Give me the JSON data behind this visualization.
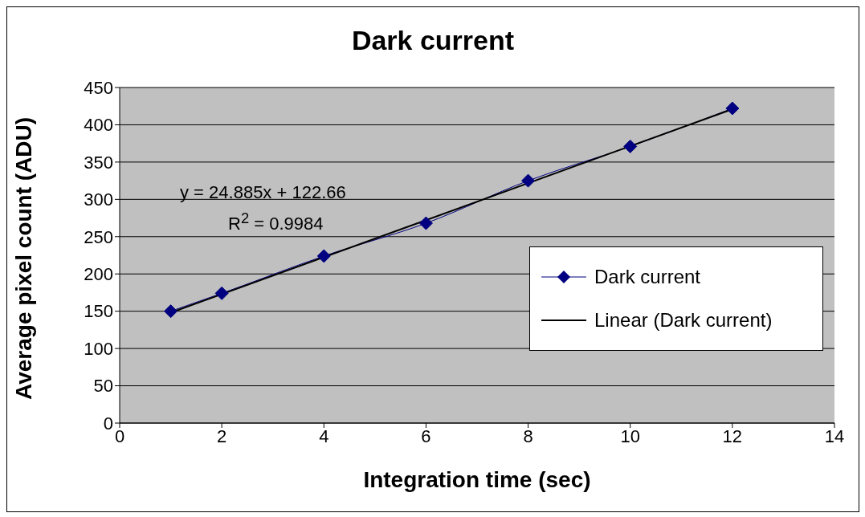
{
  "chart_data": {
    "type": "line",
    "title": "Dark current",
    "xlabel": "Integration time (sec)",
    "ylabel": "Average pixel count (ADU)",
    "x": [
      1,
      2,
      4,
      6,
      8,
      10,
      12
    ],
    "series": [
      {
        "name": "Dark current",
        "color": "#000080",
        "values": [
          150,
          174,
          224,
          268,
          325,
          371,
          422
        ],
        "marker": "diamond"
      },
      {
        "name": "Linear (Dark current)",
        "color": "#000000",
        "x": [
          1,
          12
        ],
        "values": [
          148,
          421
        ],
        "marker": "none"
      }
    ],
    "xlim": [
      0,
      14
    ],
    "xticks": [
      0,
      2,
      4,
      6,
      8,
      10,
      12,
      14
    ],
    "ylim": [
      0,
      450
    ],
    "yticks": [
      0,
      50,
      100,
      150,
      200,
      250,
      300,
      350,
      400,
      450
    ],
    "grid": "y",
    "legend": "right",
    "annotations": [
      "y = 24.885x + 122.66",
      "R$^{2}$ = 0.9984"
    ]
  }
}
